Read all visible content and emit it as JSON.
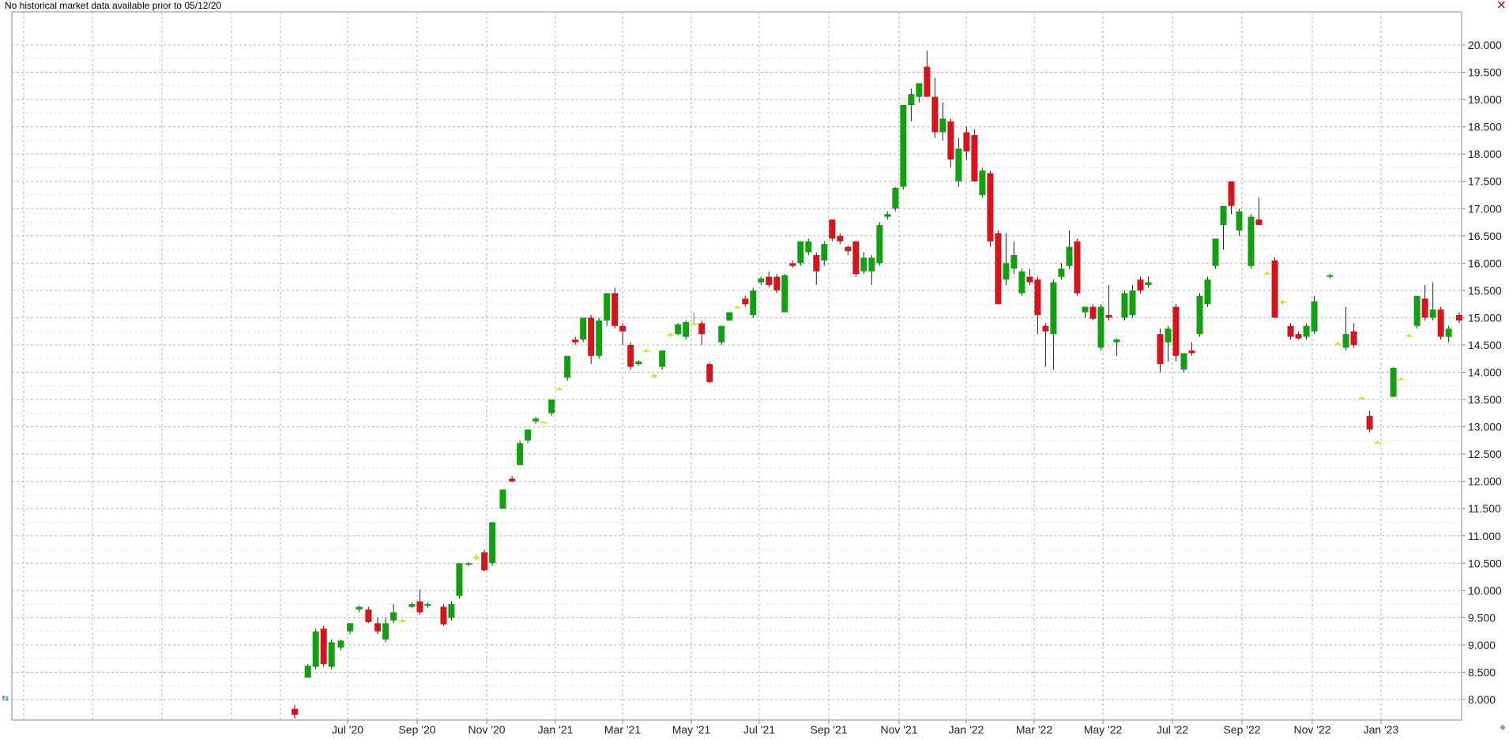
{
  "notice": "No historical market data available prior to 05/12/20",
  "controls": {
    "close_glyph": "×",
    "left_handle_glyph": "⇆",
    "corner_glyph": "◆"
  },
  "colors": {
    "up": "#12a012",
    "down": "#d4161c",
    "flat": "#f0e000",
    "grid": "#b4b4b4",
    "axis": "#888888"
  },
  "chart_data": {
    "type": "candlestick",
    "title": "",
    "xlabel": "",
    "ylabel": "",
    "grid": true,
    "x_ticks": [
      "Jul '20",
      "Sep '20",
      "Nov '20",
      "Jan '21",
      "Mar '21",
      "May '21",
      "Jul '21",
      "Sep '21",
      "Nov '21",
      "Jan '22",
      "Mar '22",
      "May '22",
      "Jul '22",
      "Sep '22",
      "Nov '22",
      "Jan '23"
    ],
    "y_ticks": [
      "20.000",
      "19.500",
      "19.000",
      "18.500",
      "18.000",
      "17.500",
      "17.000",
      "16.500",
      "16.000",
      "15.500",
      "15.000",
      "14.500",
      "14.000",
      "13.500",
      "13.000",
      "12.500",
      "12.000",
      "11.500",
      "11.000",
      "10.500",
      "10.000",
      "9.500",
      "9.000",
      "8.500",
      "8.000"
    ],
    "ylim": [
      7.7,
      20.3
    ],
    "candles": [
      {
        "t": 0.0,
        "o": 7.83,
        "h": 7.9,
        "l": 7.65,
        "c": 7.72
      },
      {
        "t": 1.0,
        "o": 8.4,
        "h": 8.65,
        "l": 8.4,
        "c": 8.62
      },
      {
        "t": 1.6,
        "o": 8.6,
        "h": 9.3,
        "l": 8.55,
        "c": 9.25
      },
      {
        "t": 2.2,
        "o": 9.3,
        "h": 9.35,
        "l": 8.6,
        "c": 8.65
      },
      {
        "t": 2.8,
        "o": 8.6,
        "h": 9.1,
        "l": 8.55,
        "c": 9.05
      },
      {
        "t": 3.5,
        "o": 8.95,
        "h": 9.1,
        "l": 8.9,
        "c": 9.08
      },
      {
        "t": 4.2,
        "o": 9.25,
        "h": 9.4,
        "l": 9.2,
        "c": 9.4
      },
      {
        "t": 4.9,
        "o": 9.65,
        "h": 9.72,
        "l": 9.6,
        "c": 9.7
      },
      {
        "t": 5.6,
        "o": 9.65,
        "h": 9.7,
        "l": 9.4,
        "c": 9.42
      },
      {
        "t": 6.3,
        "o": 9.4,
        "h": 9.5,
        "l": 9.2,
        "c": 9.25
      },
      {
        "t": 6.9,
        "o": 9.1,
        "h": 9.5,
        "l": 9.05,
        "c": 9.4
      },
      {
        "t": 7.5,
        "o": 9.45,
        "h": 9.75,
        "l": 9.4,
        "c": 9.6
      },
      {
        "t": 8.2,
        "o": 9.45,
        "h": 9.47,
        "l": 9.42,
        "c": 9.43
      },
      {
        "t": 8.9,
        "o": 9.7,
        "h": 9.78,
        "l": 9.68,
        "c": 9.75
      },
      {
        "t": 9.5,
        "o": 9.8,
        "h": 10.02,
        "l": 9.55,
        "c": 9.6
      },
      {
        "t": 10.1,
        "o": 9.72,
        "h": 9.78,
        "l": 9.68,
        "c": 9.75
      },
      {
        "t": 11.3,
        "o": 9.7,
        "h": 9.75,
        "l": 9.35,
        "c": 9.38
      },
      {
        "t": 11.9,
        "o": 9.5,
        "h": 9.8,
        "l": 9.45,
        "c": 9.75
      },
      {
        "t": 12.5,
        "o": 9.9,
        "h": 10.5,
        "l": 9.85,
        "c": 10.5
      },
      {
        "t": 13.2,
        "o": 10.47,
        "h": 10.52,
        "l": 10.45,
        "c": 10.5
      },
      {
        "t": 13.8,
        "o": 10.6,
        "h": 10.65,
        "l": 10.55,
        "c": 10.62
      },
      {
        "t": 14.4,
        "o": 10.7,
        "h": 10.75,
        "l": 10.35,
        "c": 10.37
      },
      {
        "t": 15.0,
        "o": 10.5,
        "h": 11.25,
        "l": 10.45,
        "c": 11.25
      },
      {
        "t": 15.8,
        "o": 11.5,
        "h": 11.85,
        "l": 11.5,
        "c": 11.85
      },
      {
        "t": 16.5,
        "o": 12.05,
        "h": 12.1,
        "l": 11.98,
        "c": 12.0
      },
      {
        "t": 17.1,
        "o": 12.3,
        "h": 12.75,
        "l": 12.3,
        "c": 12.7
      },
      {
        "t": 17.7,
        "o": 12.75,
        "h": 12.95,
        "l": 12.7,
        "c": 12.95
      },
      {
        "t": 18.3,
        "o": 13.1,
        "h": 13.18,
        "l": 13.05,
        "c": 13.15
      },
      {
        "t": 18.9,
        "o": 13.08,
        "h": 13.1,
        "l": 13.07,
        "c": 13.09
      },
      {
        "t": 19.5,
        "o": 13.25,
        "h": 13.5,
        "l": 13.2,
        "c": 13.5
      },
      {
        "t": 20.1,
        "o": 13.7,
        "h": 13.72,
        "l": 13.69,
        "c": 13.7
      },
      {
        "t": 20.7,
        "o": 13.9,
        "h": 14.3,
        "l": 13.85,
        "c": 14.3
      },
      {
        "t": 21.3,
        "o": 14.6,
        "h": 14.65,
        "l": 14.5,
        "c": 14.55
      },
      {
        "t": 21.9,
        "o": 14.6,
        "h": 15.0,
        "l": 14.55,
        "c": 15.0
      },
      {
        "t": 22.5,
        "o": 15.0,
        "h": 15.05,
        "l": 14.15,
        "c": 14.3
      },
      {
        "t": 23.1,
        "o": 14.3,
        "h": 15.0,
        "l": 14.25,
        "c": 14.95
      },
      {
        "t": 23.7,
        "o": 14.95,
        "h": 15.45,
        "l": 14.85,
        "c": 15.45
      },
      {
        "t": 24.3,
        "o": 15.45,
        "h": 15.55,
        "l": 14.8,
        "c": 14.85
      },
      {
        "t": 24.9,
        "o": 14.85,
        "h": 14.9,
        "l": 14.5,
        "c": 14.75
      },
      {
        "t": 25.5,
        "o": 14.5,
        "h": 14.55,
        "l": 14.05,
        "c": 14.1
      },
      {
        "t": 26.1,
        "o": 14.15,
        "h": 14.22,
        "l": 14.12,
        "c": 14.2
      },
      {
        "t": 26.7,
        "o": 14.4,
        "h": 14.42,
        "l": 14.38,
        "c": 14.4
      },
      {
        "t": 27.3,
        "o": 13.93,
        "h": 13.97,
        "l": 13.9,
        "c": 13.95
      },
      {
        "t": 27.9,
        "o": 14.1,
        "h": 14.4,
        "l": 14.05,
        "c": 14.4
      },
      {
        "t": 28.5,
        "o": 14.7,
        "h": 14.72,
        "l": 14.65,
        "c": 14.7
      },
      {
        "t": 29.1,
        "o": 14.7,
        "h": 14.9,
        "l": 14.68,
        "c": 14.88
      },
      {
        "t": 29.7,
        "o": 14.65,
        "h": 14.95,
        "l": 14.6,
        "c": 14.92
      },
      {
        "t": 30.3,
        "o": 14.9,
        "h": 15.1,
        "l": 14.85,
        "c": 14.9
      },
      {
        "t": 30.9,
        "o": 14.9,
        "h": 14.95,
        "l": 14.5,
        "c": 14.7
      },
      {
        "t": 31.5,
        "o": 14.15,
        "h": 14.18,
        "l": 13.8,
        "c": 13.82
      },
      {
        "t": 32.4,
        "o": 14.55,
        "h": 14.85,
        "l": 14.5,
        "c": 14.85
      },
      {
        "t": 33.0,
        "o": 14.95,
        "h": 15.1,
        "l": 14.95,
        "c": 15.1
      },
      {
        "t": 33.6,
        "o": 15.2,
        "h": 15.22,
        "l": 15.18,
        "c": 15.2
      },
      {
        "t": 34.2,
        "o": 15.35,
        "h": 15.4,
        "l": 15.2,
        "c": 15.25
      },
      {
        "t": 34.8,
        "o": 15.05,
        "h": 15.55,
        "l": 15.0,
        "c": 15.5
      },
      {
        "t": 35.4,
        "o": 15.65,
        "h": 15.75,
        "l": 15.6,
        "c": 15.72
      },
      {
        "t": 36.0,
        "o": 15.75,
        "h": 15.85,
        "l": 15.55,
        "c": 15.6
      },
      {
        "t": 36.6,
        "o": 15.75,
        "h": 15.8,
        "l": 15.45,
        "c": 15.5
      },
      {
        "t": 37.2,
        "o": 15.1,
        "h": 15.8,
        "l": 15.1,
        "c": 15.78
      },
      {
        "t": 37.8,
        "o": 16.0,
        "h": 16.05,
        "l": 15.92,
        "c": 15.95
      },
      {
        "t": 38.4,
        "o": 16.0,
        "h": 16.4,
        "l": 15.95,
        "c": 16.4
      },
      {
        "t": 39.0,
        "o": 16.2,
        "h": 16.45,
        "l": 16.15,
        "c": 16.4
      },
      {
        "t": 39.6,
        "o": 16.15,
        "h": 16.2,
        "l": 15.6,
        "c": 15.85
      },
      {
        "t": 40.2,
        "o": 16.05,
        "h": 16.4,
        "l": 15.95,
        "c": 16.35
      },
      {
        "t": 40.8,
        "o": 16.8,
        "h": 16.8,
        "l": 16.4,
        "c": 16.45
      },
      {
        "t": 41.4,
        "o": 16.5,
        "h": 16.55,
        "l": 16.35,
        "c": 16.4
      },
      {
        "t": 42.0,
        "o": 16.3,
        "h": 16.32,
        "l": 16.15,
        "c": 16.22
      },
      {
        "t": 42.6,
        "o": 16.4,
        "h": 16.4,
        "l": 15.75,
        "c": 15.8
      },
      {
        "t": 43.2,
        "o": 15.85,
        "h": 16.2,
        "l": 15.8,
        "c": 16.1
      },
      {
        "t": 43.8,
        "o": 15.85,
        "h": 16.15,
        "l": 15.6,
        "c": 16.1
      },
      {
        "t": 44.4,
        "o": 16.0,
        "h": 16.75,
        "l": 15.95,
        "c": 16.7
      },
      {
        "t": 45.0,
        "o": 16.85,
        "h": 16.95,
        "l": 16.8,
        "c": 16.9
      },
      {
        "t": 45.6,
        "o": 17.0,
        "h": 17.4,
        "l": 16.95,
        "c": 17.38
      },
      {
        "t": 46.2,
        "o": 17.4,
        "h": 18.9,
        "l": 17.35,
        "c": 18.9
      },
      {
        "t": 46.8,
        "o": 18.9,
        "h": 19.2,
        "l": 18.6,
        "c": 19.1
      },
      {
        "t": 47.4,
        "o": 19.05,
        "h": 19.3,
        "l": 18.95,
        "c": 19.3
      },
      {
        "t": 48.0,
        "o": 19.6,
        "h": 19.9,
        "l": 19.1,
        "c": 19.05
      },
      {
        "t": 48.6,
        "o": 19.05,
        "h": 19.4,
        "l": 18.3,
        "c": 18.4
      },
      {
        "t": 49.2,
        "o": 18.4,
        "h": 18.95,
        "l": 18.25,
        "c": 18.65
      },
      {
        "t": 49.8,
        "o": 18.6,
        "h": 18.65,
        "l": 17.75,
        "c": 17.9
      },
      {
        "t": 50.4,
        "o": 17.5,
        "h": 18.3,
        "l": 17.4,
        "c": 18.1
      },
      {
        "t": 51.0,
        "o": 18.4,
        "h": 18.5,
        "l": 17.9,
        "c": 18.05
      },
      {
        "t": 51.6,
        "o": 18.35,
        "h": 18.45,
        "l": 17.5,
        "c": 17.5
      },
      {
        "t": 52.2,
        "o": 17.25,
        "h": 17.75,
        "l": 17.2,
        "c": 17.7
      },
      {
        "t": 52.8,
        "o": 17.65,
        "h": 17.7,
        "l": 16.3,
        "c": 16.4
      },
      {
        "t": 53.4,
        "o": 16.55,
        "h": 16.6,
        "l": 15.25,
        "c": 15.25
      },
      {
        "t": 54.0,
        "o": 15.7,
        "h": 16.55,
        "l": 15.6,
        "c": 16.0
      },
      {
        "t": 54.6,
        "o": 15.9,
        "h": 16.4,
        "l": 15.8,
        "c": 16.15
      },
      {
        "t": 55.2,
        "o": 15.45,
        "h": 15.9,
        "l": 15.4,
        "c": 15.85
      },
      {
        "t": 55.8,
        "o": 15.75,
        "h": 15.9,
        "l": 15.6,
        "c": 15.65
      },
      {
        "t": 56.4,
        "o": 15.7,
        "h": 15.75,
        "l": 14.7,
        "c": 15.05
      },
      {
        "t": 57.0,
        "o": 14.85,
        "h": 14.9,
        "l": 14.1,
        "c": 14.75
      },
      {
        "t": 57.6,
        "o": 14.7,
        "h": 15.7,
        "l": 14.05,
        "c": 15.65
      },
      {
        "t": 58.2,
        "o": 15.75,
        "h": 16.0,
        "l": 15.7,
        "c": 15.9
      },
      {
        "t": 58.8,
        "o": 15.95,
        "h": 16.6,
        "l": 15.9,
        "c": 16.3
      },
      {
        "t": 59.4,
        "o": 16.4,
        "h": 16.45,
        "l": 15.4,
        "c": 15.45
      },
      {
        "t": 60.0,
        "o": 15.1,
        "h": 15.2,
        "l": 15.0,
        "c": 15.2
      },
      {
        "t": 60.6,
        "o": 15.2,
        "h": 15.25,
        "l": 14.95,
        "c": 14.98
      },
      {
        "t": 61.2,
        "o": 14.45,
        "h": 15.25,
        "l": 14.4,
        "c": 15.2
      },
      {
        "t": 61.8,
        "o": 15.05,
        "h": 15.6,
        "l": 14.95,
        "c": 15.0
      },
      {
        "t": 62.4,
        "o": 14.55,
        "h": 14.62,
        "l": 14.3,
        "c": 14.6
      },
      {
        "t": 63.0,
        "o": 15.0,
        "h": 15.5,
        "l": 14.95,
        "c": 15.45
      },
      {
        "t": 63.6,
        "o": 15.05,
        "h": 15.6,
        "l": 15.0,
        "c": 15.5
      },
      {
        "t": 64.2,
        "o": 15.7,
        "h": 15.75,
        "l": 15.45,
        "c": 15.5
      },
      {
        "t": 64.8,
        "o": 15.6,
        "h": 15.75,
        "l": 15.55,
        "c": 15.65
      },
      {
        "t": 65.7,
        "o": 14.7,
        "h": 14.8,
        "l": 14.0,
        "c": 14.15
      },
      {
        "t": 66.3,
        "o": 14.55,
        "h": 14.85,
        "l": 14.2,
        "c": 14.8
      },
      {
        "t": 66.9,
        "o": 15.2,
        "h": 15.25,
        "l": 14.2,
        "c": 14.3
      },
      {
        "t": 67.5,
        "o": 14.05,
        "h": 14.35,
        "l": 14.0,
        "c": 14.35
      },
      {
        "t": 68.1,
        "o": 14.4,
        "h": 14.55,
        "l": 14.3,
        "c": 14.35
      },
      {
        "t": 68.7,
        "o": 14.7,
        "h": 15.45,
        "l": 14.65,
        "c": 15.4
      },
      {
        "t": 69.3,
        "o": 15.25,
        "h": 15.75,
        "l": 15.2,
        "c": 15.7
      },
      {
        "t": 69.9,
        "o": 15.95,
        "h": 16.45,
        "l": 15.9,
        "c": 16.45
      },
      {
        "t": 70.5,
        "o": 16.7,
        "h": 17.05,
        "l": 16.25,
        "c": 17.05
      },
      {
        "t": 71.1,
        "o": 17.5,
        "h": 17.5,
        "l": 16.9,
        "c": 17.05
      },
      {
        "t": 71.7,
        "o": 16.6,
        "h": 17.0,
        "l": 16.5,
        "c": 16.95
      },
      {
        "t": 72.6,
        "o": 15.95,
        "h": 16.9,
        "l": 15.9,
        "c": 16.85
      },
      {
        "t": 73.2,
        "o": 16.8,
        "h": 17.2,
        "l": 16.75,
        "c": 16.7
      },
      {
        "t": 73.8,
        "o": 15.82,
        "h": 15.84,
        "l": 15.8,
        "c": 15.82
      },
      {
        "t": 74.4,
        "o": 16.05,
        "h": 16.1,
        "l": 15.0,
        "c": 15.0
      },
      {
        "t": 75.0,
        "o": 15.3,
        "h": 15.32,
        "l": 15.25,
        "c": 15.3
      },
      {
        "t": 75.6,
        "o": 14.85,
        "h": 14.9,
        "l": 14.6,
        "c": 14.65
      },
      {
        "t": 76.2,
        "o": 14.7,
        "h": 14.75,
        "l": 14.6,
        "c": 14.62
      },
      {
        "t": 76.8,
        "o": 14.65,
        "h": 14.9,
        "l": 14.6,
        "c": 14.85
      },
      {
        "t": 77.4,
        "o": 14.75,
        "h": 15.4,
        "l": 14.7,
        "c": 15.3
      },
      {
        "t": 78.6,
        "o": 15.75,
        "h": 15.8,
        "l": 15.72,
        "c": 15.78
      },
      {
        "t": 79.2,
        "o": 14.53,
        "h": 14.55,
        "l": 14.51,
        "c": 14.53
      },
      {
        "t": 79.8,
        "o": 14.45,
        "h": 15.2,
        "l": 14.4,
        "c": 14.7
      },
      {
        "t": 80.4,
        "o": 14.75,
        "h": 14.9,
        "l": 14.45,
        "c": 14.5
      },
      {
        "t": 81.0,
        "o": 13.53,
        "h": 13.55,
        "l": 13.51,
        "c": 13.53
      },
      {
        "t": 81.6,
        "o": 13.2,
        "h": 13.3,
        "l": 12.9,
        "c": 12.95
      },
      {
        "t": 82.2,
        "o": 12.72,
        "h": 12.74,
        "l": 12.7,
        "c": 12.72
      },
      {
        "t": 83.4,
        "o": 13.55,
        "h": 14.1,
        "l": 13.55,
        "c": 14.08
      },
      {
        "t": 84.0,
        "o": 13.88,
        "h": 13.9,
        "l": 13.86,
        "c": 13.88
      },
      {
        "t": 84.6,
        "o": 14.67,
        "h": 14.7,
        "l": 14.65,
        "c": 14.68
      },
      {
        "t": 85.2,
        "o": 14.85,
        "h": 15.4,
        "l": 14.8,
        "c": 15.4
      },
      {
        "t": 85.8,
        "o": 15.35,
        "h": 15.6,
        "l": 14.95,
        "c": 15.0
      },
      {
        "t": 86.4,
        "o": 15.0,
        "h": 15.65,
        "l": 14.95,
        "c": 15.15
      },
      {
        "t": 87.0,
        "o": 15.15,
        "h": 15.2,
        "l": 14.6,
        "c": 14.65
      },
      {
        "t": 87.6,
        "o": 14.65,
        "h": 14.85,
        "l": 14.55,
        "c": 14.8
      },
      {
        "t": 88.4,
        "o": 15.05,
        "h": 15.1,
        "l": 14.9,
        "c": 14.95
      }
    ]
  }
}
